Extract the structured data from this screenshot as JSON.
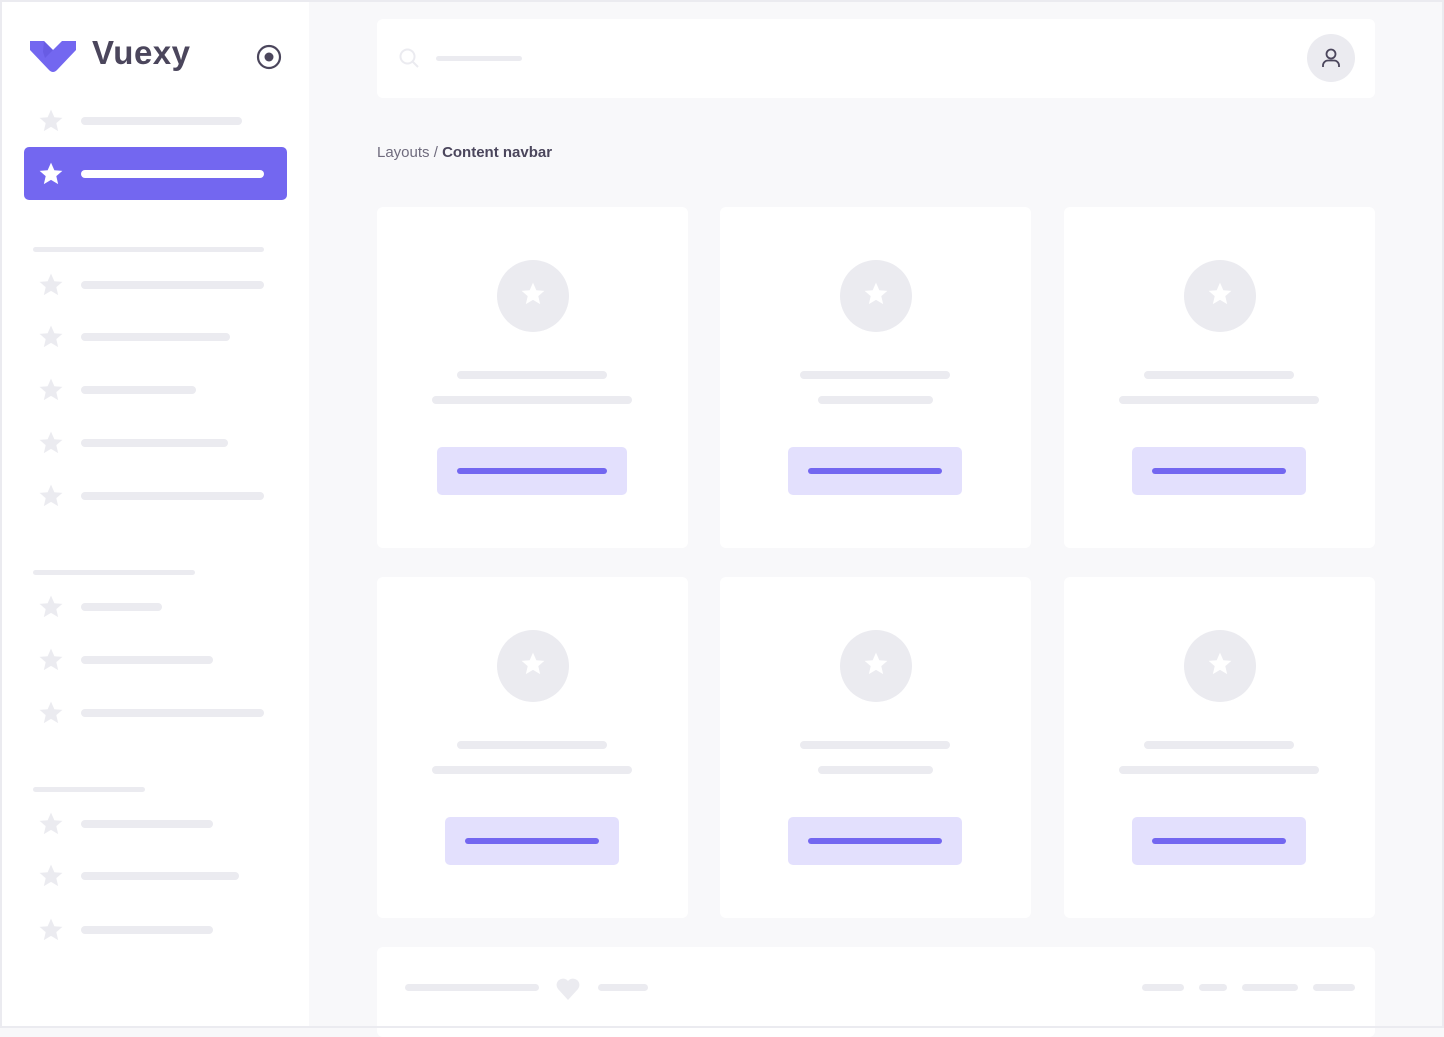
{
  "app": {
    "brand": "Vuexy",
    "accent": "#7367f0",
    "accent_light": "#e3e0fd",
    "skeleton": "#ebebf0"
  },
  "breadcrumb": {
    "parent": "Layouts",
    "separator": " / ",
    "current": "Content navbar"
  },
  "icons": {
    "logo": "vuexy-logo",
    "toggle": "radio-circle-icon",
    "menu": "star-icon",
    "search": "search-icon",
    "avatar": "user-icon",
    "footer": "heart-icon"
  }
}
